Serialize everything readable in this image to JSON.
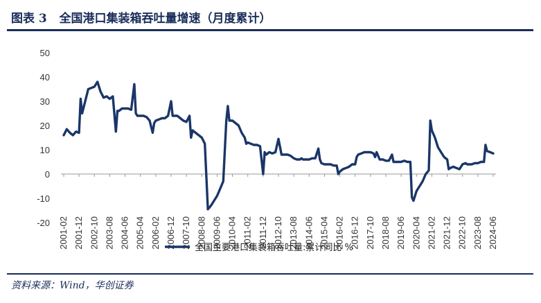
{
  "header": {
    "figure_label": "图表 3",
    "title": "全国港口集装箱吞吐量增速（月度累计）"
  },
  "source": "资料来源：Wind，华创证券",
  "colors": {
    "line": "#1a3668",
    "accent": "#1a2d5a"
  },
  "chart_data": {
    "type": "line",
    "title": "全国港口集装箱吞吐量增速（月度累计）",
    "xlabel": "",
    "ylabel": "",
    "ylim": [
      -20,
      50
    ],
    "yticks": [
      -20,
      -10,
      0,
      10,
      20,
      30,
      40,
      50
    ],
    "xticks": [
      "2001-02",
      "2001-12",
      "2002-10",
      "2003-08",
      "2004-06",
      "2005-04",
      "2006-02",
      "2006-12",
      "2007-10",
      "2008-08",
      "2009-06",
      "2010-04",
      "2011-02",
      "2011-12",
      "2012-10",
      "2013-08",
      "2014-06",
      "2015-04",
      "2016-02",
      "2016-12",
      "2017-10",
      "2018-08",
      "2019-06",
      "2020-04",
      "2021-02",
      "2021-12",
      "2022-10",
      "2023-08",
      "2024-06"
    ],
    "grid": false,
    "legend": "bottom-center",
    "series": [
      {
        "name": "全国主要港口集装箱吞吐量:累计同比 %",
        "x": [
          "2001-02",
          "2001-04",
          "2001-06",
          "2001-08",
          "2001-10",
          "2001-12",
          "2002-01",
          "2002-02",
          "2002-04",
          "2002-06",
          "2002-08",
          "2002-10",
          "2002-12",
          "2003-02",
          "2003-04",
          "2003-06",
          "2003-08",
          "2003-10",
          "2003-12",
          "2004-01",
          "2004-02",
          "2004-04",
          "2004-06",
          "2004-08",
          "2004-10",
          "2004-12",
          "2005-01",
          "2005-02",
          "2005-04",
          "2005-06",
          "2005-08",
          "2005-10",
          "2005-12",
          "2006-01",
          "2006-02",
          "2006-04",
          "2006-06",
          "2006-08",
          "2006-10",
          "2006-12",
          "2007-01",
          "2007-02",
          "2007-04",
          "2007-06",
          "2007-08",
          "2007-10",
          "2007-12",
          "2008-01",
          "2008-02",
          "2008-04",
          "2008-06",
          "2008-08",
          "2008-10",
          "2008-12",
          "2009-02",
          "2009-04",
          "2009-06",
          "2009-08",
          "2009-10",
          "2009-12",
          "2010-01",
          "2010-02",
          "2010-04",
          "2010-06",
          "2010-08",
          "2010-10",
          "2010-12",
          "2011-01",
          "2011-02",
          "2011-04",
          "2011-06",
          "2011-08",
          "2011-10",
          "2011-12",
          "2012-01",
          "2012-02",
          "2012-04",
          "2012-06",
          "2012-08",
          "2012-10",
          "2012-12",
          "2013-01",
          "2013-02",
          "2013-04",
          "2013-06",
          "2013-08",
          "2013-10",
          "2013-12",
          "2014-01",
          "2014-02",
          "2014-04",
          "2014-06",
          "2014-08",
          "2014-10",
          "2014-12",
          "2015-01",
          "2015-02",
          "2015-04",
          "2015-06",
          "2015-08",
          "2015-10",
          "2015-12",
          "2016-01",
          "2016-02",
          "2016-04",
          "2016-06",
          "2016-08",
          "2016-10",
          "2016-12",
          "2017-01",
          "2017-02",
          "2017-04",
          "2017-06",
          "2017-08",
          "2017-10",
          "2017-12",
          "2018-01",
          "2018-02",
          "2018-04",
          "2018-06",
          "2018-08",
          "2018-10",
          "2018-12",
          "2019-01",
          "2019-02",
          "2019-04",
          "2019-06",
          "2019-08",
          "2019-10",
          "2019-12",
          "2020-01",
          "2020-02",
          "2020-04",
          "2020-06",
          "2020-08",
          "2020-10",
          "2020-12",
          "2021-01",
          "2021-02",
          "2021-04",
          "2021-06",
          "2021-08",
          "2021-10",
          "2021-12",
          "2022-01",
          "2022-02",
          "2022-04",
          "2022-06",
          "2022-08",
          "2022-10",
          "2022-12",
          "2023-01",
          "2023-02",
          "2023-04",
          "2023-06",
          "2023-08",
          "2023-10",
          "2023-12",
          "2024-01",
          "2024-02",
          "2024-04",
          "2024-06"
        ],
        "values": [
          16,
          18.5,
          17,
          16,
          17.5,
          17,
          31,
          25,
          30,
          35,
          35.5,
          36,
          38,
          34,
          31.5,
          32,
          31,
          32,
          17.5,
          26,
          26,
          27,
          27,
          27,
          26.5,
          37,
          25,
          24,
          24,
          24,
          23.5,
          22,
          17,
          21,
          22,
          22.5,
          23,
          23,
          24,
          30,
          24,
          24,
          24,
          23,
          22,
          21.5,
          24,
          15,
          18,
          17,
          16,
          15,
          12.5,
          -14.5,
          -13,
          -11,
          -9,
          -6,
          -3,
          22,
          28,
          22,
          22,
          21,
          20,
          17,
          15,
          12.5,
          13,
          12.5,
          12,
          12,
          11.5,
          0,
          9,
          8,
          9,
          8.5,
          9,
          14.5,
          8,
          8,
          8,
          8,
          7.5,
          6.5,
          6,
          6,
          6.5,
          6,
          6,
          6,
          6.5,
          6.5,
          10.5,
          6,
          4.5,
          4,
          4,
          4,
          3.5,
          3.5,
          0,
          1,
          2,
          2.5,
          3,
          4,
          4,
          7,
          8,
          8.5,
          9,
          9,
          9,
          8.5,
          7,
          9,
          6,
          6,
          5.5,
          5.5,
          8,
          5,
          5,
          5,
          5,
          5.5,
          5,
          5,
          -9.5,
          -11,
          -7,
          -5,
          -3,
          0,
          1.5,
          22,
          18,
          15,
          11,
          9,
          7,
          6,
          2,
          2.5,
          3,
          2.5,
          2,
          4,
          4.5,
          4,
          4,
          4,
          4.5,
          4.5,
          5,
          5,
          12,
          9.5,
          9,
          8.5
        ]
      }
    ]
  }
}
